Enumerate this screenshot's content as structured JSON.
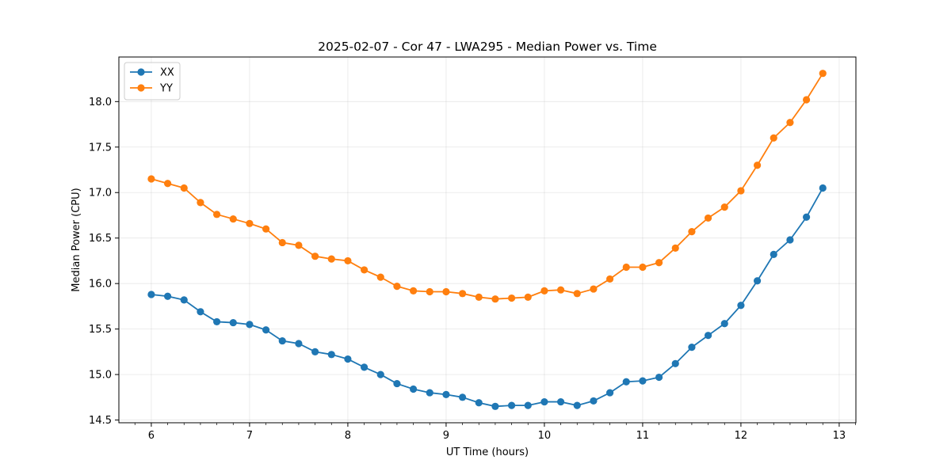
{
  "chart_data": {
    "type": "line",
    "title": "2025-02-07 - Cor 47 - LWA295 - Median Power vs. Time",
    "xlabel": "UT Time (hours)",
    "ylabel": "Median Power (CPU)",
    "xlim": [
      5.67,
      13.17
    ],
    "ylim": [
      14.47,
      18.49
    ],
    "xticks": [
      6,
      7,
      8,
      9,
      10,
      11,
      12,
      13
    ],
    "xtick_labels": [
      "6",
      "7",
      "8",
      "9",
      "10",
      "11",
      "12",
      "13"
    ],
    "yticks": [
      14.5,
      15.0,
      15.5,
      16.0,
      16.5,
      17.0,
      17.5,
      18.0
    ],
    "ytick_labels": [
      "14.5",
      "15.0",
      "15.5",
      "16.0",
      "16.5",
      "17.0",
      "17.5",
      "18.0"
    ],
    "grid": true,
    "legend_position": "top-left",
    "x": [
      6.0,
      6.1667,
      6.3333,
      6.5,
      6.6667,
      6.8333,
      7.0,
      7.1667,
      7.3333,
      7.5,
      7.6667,
      7.8333,
      8.0,
      8.1667,
      8.3333,
      8.5,
      8.6667,
      8.8333,
      9.0,
      9.1667,
      9.3333,
      9.5,
      9.6667,
      9.8333,
      10.0,
      10.1667,
      10.3333,
      10.5,
      10.6667,
      10.8333,
      11.0,
      11.1667,
      11.3333,
      11.5,
      11.6667,
      11.8333,
      12.0,
      12.1667,
      12.3333,
      12.5,
      12.6667,
      12.8333
    ],
    "series": [
      {
        "name": "XX",
        "color": "#1f77b4",
        "values": [
          15.88,
          15.86,
          15.82,
          15.69,
          15.58,
          15.57,
          15.55,
          15.49,
          15.37,
          15.34,
          15.25,
          15.22,
          15.17,
          15.08,
          15.0,
          14.9,
          14.84,
          14.8,
          14.78,
          14.75,
          14.69,
          14.65,
          14.66,
          14.66,
          14.7,
          14.7,
          14.66,
          14.71,
          14.8,
          14.92,
          14.93,
          14.97,
          15.12,
          15.3,
          15.43,
          15.56,
          15.76,
          16.03,
          16.32,
          16.48,
          16.73,
          17.05
        ]
      },
      {
        "name": "YY",
        "color": "#ff7f0e",
        "values": [
          17.15,
          17.1,
          17.05,
          16.89,
          16.76,
          16.71,
          16.66,
          16.6,
          16.45,
          16.42,
          16.3,
          16.27,
          16.25,
          16.15,
          16.07,
          15.97,
          15.92,
          15.91,
          15.91,
          15.89,
          15.85,
          15.83,
          15.84,
          15.85,
          15.92,
          15.93,
          15.89,
          15.94,
          16.05,
          16.18,
          16.18,
          16.23,
          16.39,
          16.57,
          16.72,
          16.84,
          17.02,
          17.3,
          17.6,
          17.77,
          18.02,
          18.31
        ]
      }
    ]
  }
}
